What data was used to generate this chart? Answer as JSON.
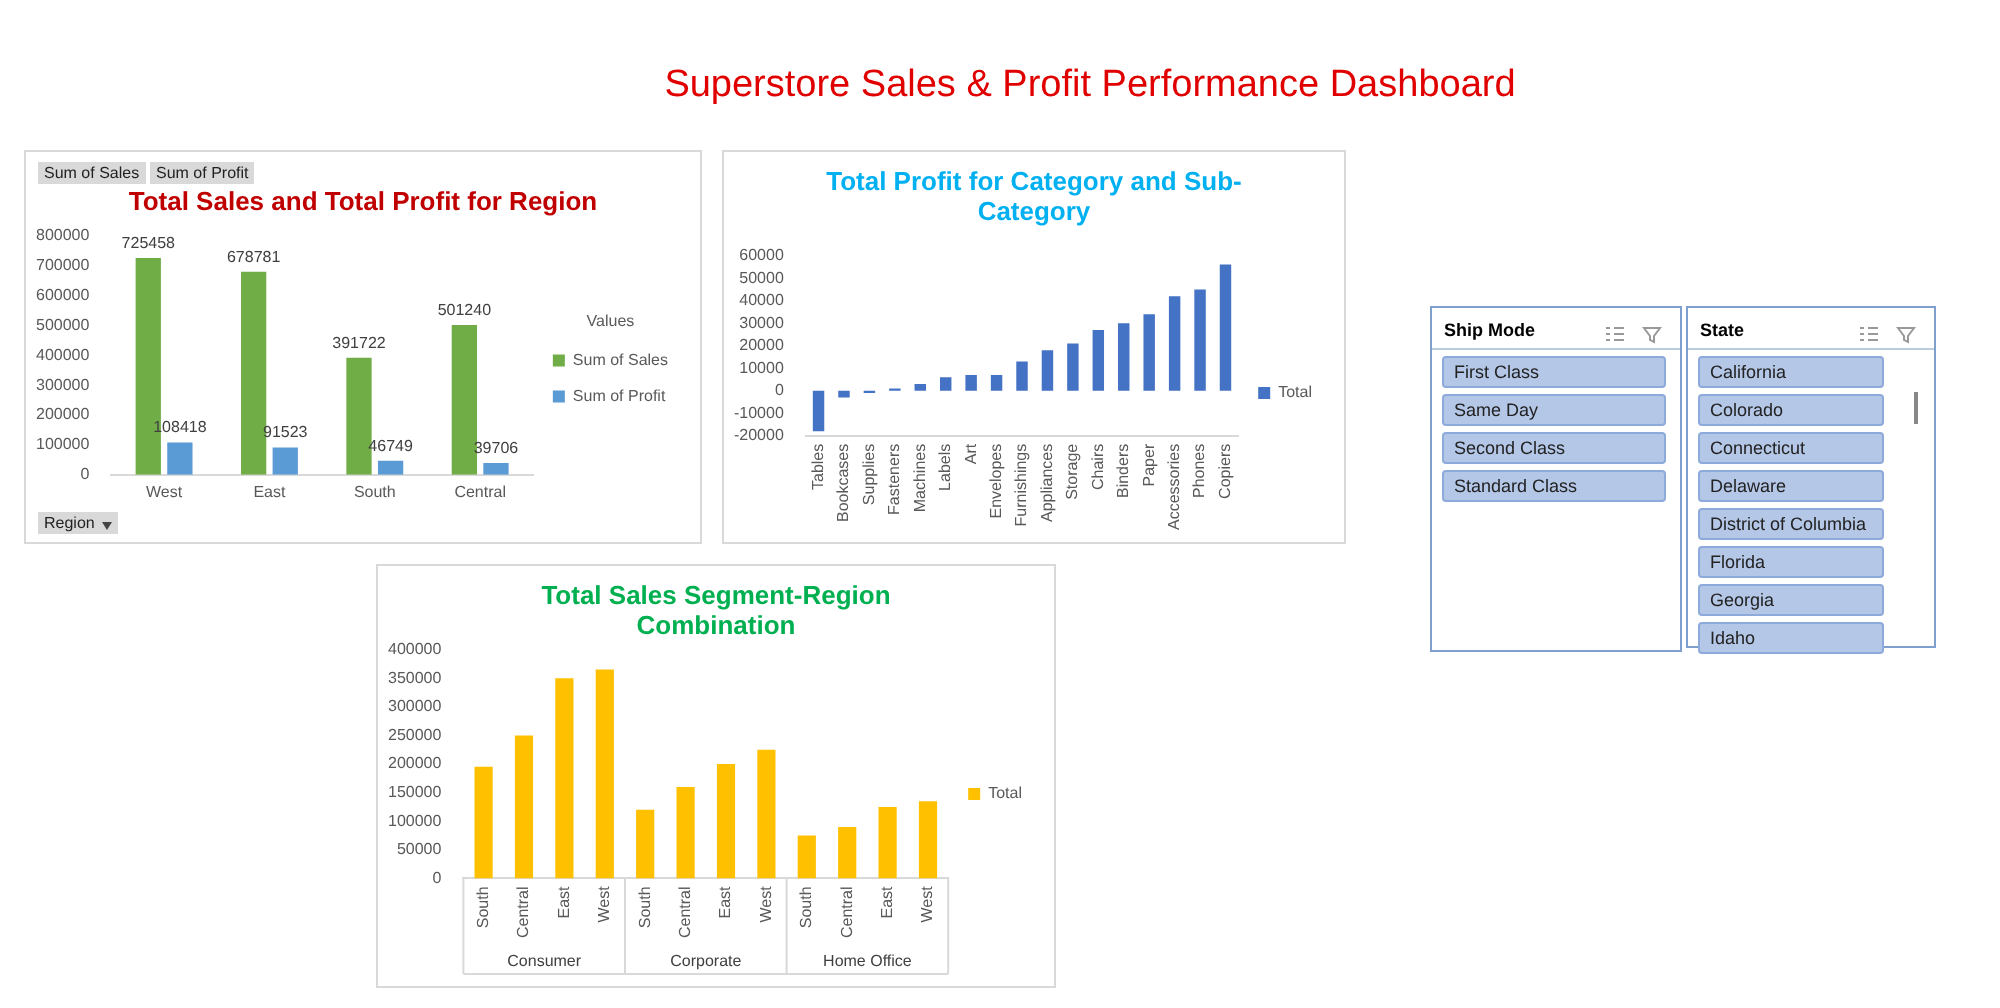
{
  "chart_data": [
    {
      "type": "other",
      "title": "Superstore Sales & Profit Performance Dashboard"
    },
    {
      "type": "bar",
      "title": "Total Sales and Total Profit for Region",
      "categories": [
        "West",
        "East",
        "South",
        "Central"
      ],
      "series": [
        {
          "name": "Sum of Sales",
          "color": "#70ad47",
          "values": [
            725458,
            678781,
            391722,
            501240
          ]
        },
        {
          "name": "Sum of Profit",
          "color": "#5b9bd5",
          "values": [
            108418,
            91523,
            46749,
            39706
          ]
        }
      ],
      "ylim": [
        0,
        800000
      ],
      "yticks": [
        0,
        100000,
        200000,
        300000,
        400000,
        500000,
        600000,
        700000,
        800000
      ],
      "data_labels": true,
      "legend": "right",
      "legend_title": "Values",
      "annotations": [
        "Sum of Sales",
        "Sum of Profit",
        "Region"
      ]
    },
    {
      "type": "bar",
      "title": "Total Profit for Category and Sub-Category",
      "categories": [
        "Tables",
        "Bookcases",
        "Supplies",
        "Fasteners",
        "Machines",
        "Labels",
        "Art",
        "Envelopes",
        "Furnishings",
        "Appliances",
        "Storage",
        "Chairs",
        "Binders",
        "Paper",
        "Accessories",
        "Phones",
        "Copiers"
      ],
      "series": [
        {
          "name": "Total",
          "color": "#4472c4",
          "values": [
            -18000,
            -3000,
            -1000,
            1000,
            3000,
            6000,
            7000,
            7000,
            13000,
            18000,
            21000,
            27000,
            30000,
            34000,
            42000,
            45000,
            56000
          ]
        }
      ],
      "ylim": [
        -20000,
        60000
      ],
      "yticks": [
        -20000,
        -10000,
        0,
        10000,
        20000,
        30000,
        40000,
        50000,
        60000
      ],
      "legend": "right"
    },
    {
      "type": "bar",
      "title": "Total Sales Segment-Region Combination",
      "categories": [
        "South",
        "Central",
        "East",
        "West",
        "South",
        "Central",
        "East",
        "West",
        "South",
        "Central",
        "East",
        "West"
      ],
      "series": [
        {
          "name": "Total",
          "color": "#ffc000",
          "values": [
            195000,
            250000,
            350000,
            365000,
            120000,
            160000,
            200000,
            225000,
            75000,
            90000,
            125000,
            135000
          ]
        }
      ],
      "ylim": [
        0,
        400000
      ],
      "yticks": [
        0,
        50000,
        100000,
        150000,
        200000,
        250000,
        300000,
        350000,
        400000
      ],
      "legend": "right",
      "annotations": [
        "Consumer",
        "Corporate",
        "Home Office"
      ]
    },
    {
      "type": "other",
      "title": "Ship Mode",
      "annotations": [
        "First Class",
        "Same Day",
        "Second Class",
        "Standard Class"
      ]
    },
    {
      "type": "other",
      "title": "State",
      "annotations": [
        "California",
        "Colorado",
        "Connecticut",
        "Delaware",
        "District of Columbia",
        "Florida",
        "Georgia",
        "Idaho"
      ]
    }
  ]
}
